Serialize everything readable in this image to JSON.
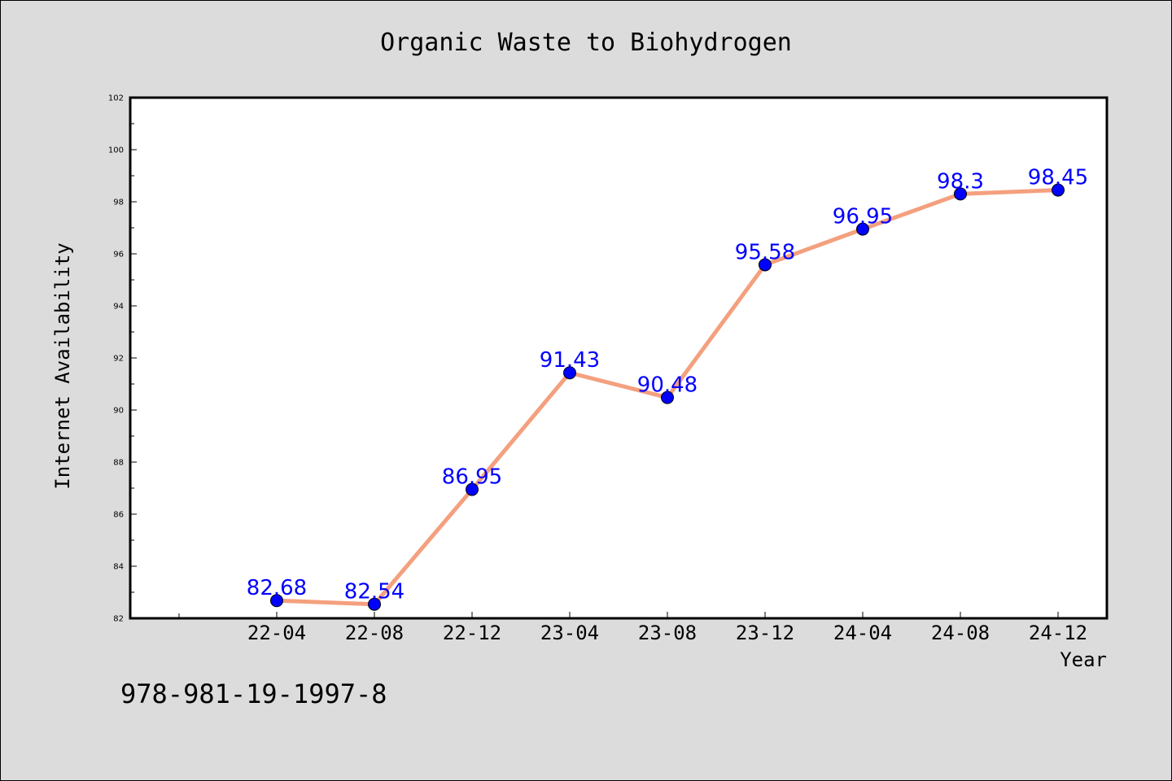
{
  "chart_data": {
    "type": "line",
    "title": "Organic Waste to Biohydrogen",
    "xlabel": "Year",
    "ylabel": "Internet Availability",
    "categories": [
      "22-04",
      "22-08",
      "22-12",
      "23-04",
      "23-08",
      "23-12",
      "24-04",
      "24-08",
      "24-12"
    ],
    "series": [
      {
        "values": [
          82.68,
          82.54,
          86.95,
          91.43,
          90.48,
          95.58,
          96.95,
          98.3,
          98.45
        ]
      }
    ],
    "data_labels": [
      "82.68",
      "82.54",
      "86.95",
      "91.43",
      "90.48",
      "95.58",
      "96.95",
      "98.3",
      "98.45"
    ],
    "ylim": [
      82,
      102
    ],
    "yticks": [
      82,
      84,
      86,
      88,
      90,
      92,
      94,
      96,
      98,
      100,
      102
    ],
    "grid": false,
    "legend": "none",
    "colors": {
      "line": "#f4a07e",
      "marker": "#0000ff",
      "label": "#0000ff",
      "plot_background": "#ffffff",
      "page_background": "#dcdcdc"
    }
  },
  "footnote": "978-981-19-1997-8"
}
